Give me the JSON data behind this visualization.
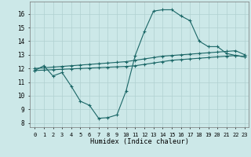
{
  "xlabel": "Humidex (Indice chaleur)",
  "bg_color": "#cce8e8",
  "grid_color": "#b0d0d0",
  "line_color": "#1a6666",
  "xticks": [
    0,
    1,
    2,
    3,
    4,
    5,
    6,
    7,
    8,
    9,
    10,
    11,
    12,
    13,
    14,
    15,
    16,
    17,
    18,
    19,
    20,
    21,
    22,
    23
  ],
  "yticks": [
    8,
    9,
    10,
    11,
    12,
    13,
    14,
    15,
    16
  ],
  "line1_x": [
    0,
    1,
    2,
    3,
    4,
    5,
    6,
    7,
    8,
    9,
    10,
    11,
    12,
    13,
    14,
    15,
    16,
    17,
    18,
    19,
    20,
    21,
    22,
    23
  ],
  "line1_y": [
    11.85,
    12.2,
    11.45,
    11.7,
    10.7,
    9.6,
    9.3,
    8.35,
    8.4,
    8.6,
    10.35,
    12.95,
    14.7,
    16.2,
    16.3,
    16.3,
    15.85,
    15.5,
    14.0,
    13.6,
    13.6,
    13.1,
    12.95,
    12.85
  ],
  "line2_x": [
    0,
    1,
    2,
    3,
    4,
    5,
    6,
    7,
    8,
    9,
    10,
    11,
    12,
    13,
    14,
    15,
    16,
    17,
    18,
    19,
    20,
    21,
    22,
    23
  ],
  "line2_y": [
    12.0,
    12.05,
    12.1,
    12.15,
    12.2,
    12.25,
    12.3,
    12.35,
    12.4,
    12.45,
    12.5,
    12.6,
    12.7,
    12.8,
    12.9,
    12.95,
    13.0,
    13.05,
    13.1,
    13.15,
    13.2,
    13.25,
    13.3,
    13.0
  ],
  "line3_x": [
    0,
    1,
    2,
    3,
    4,
    5,
    6,
    7,
    8,
    9,
    10,
    11,
    12,
    13,
    14,
    15,
    16,
    17,
    18,
    19,
    20,
    21,
    22,
    23
  ],
  "line3_y": [
    11.85,
    11.88,
    11.91,
    11.94,
    11.97,
    12.0,
    12.03,
    12.06,
    12.09,
    12.12,
    12.15,
    12.2,
    12.3,
    12.4,
    12.5,
    12.6,
    12.65,
    12.7,
    12.75,
    12.8,
    12.85,
    12.9,
    12.95,
    12.85
  ],
  "xlim_min": -0.5,
  "xlim_max": 23.4,
  "ylim_min": 7.7,
  "ylim_max": 16.9
}
